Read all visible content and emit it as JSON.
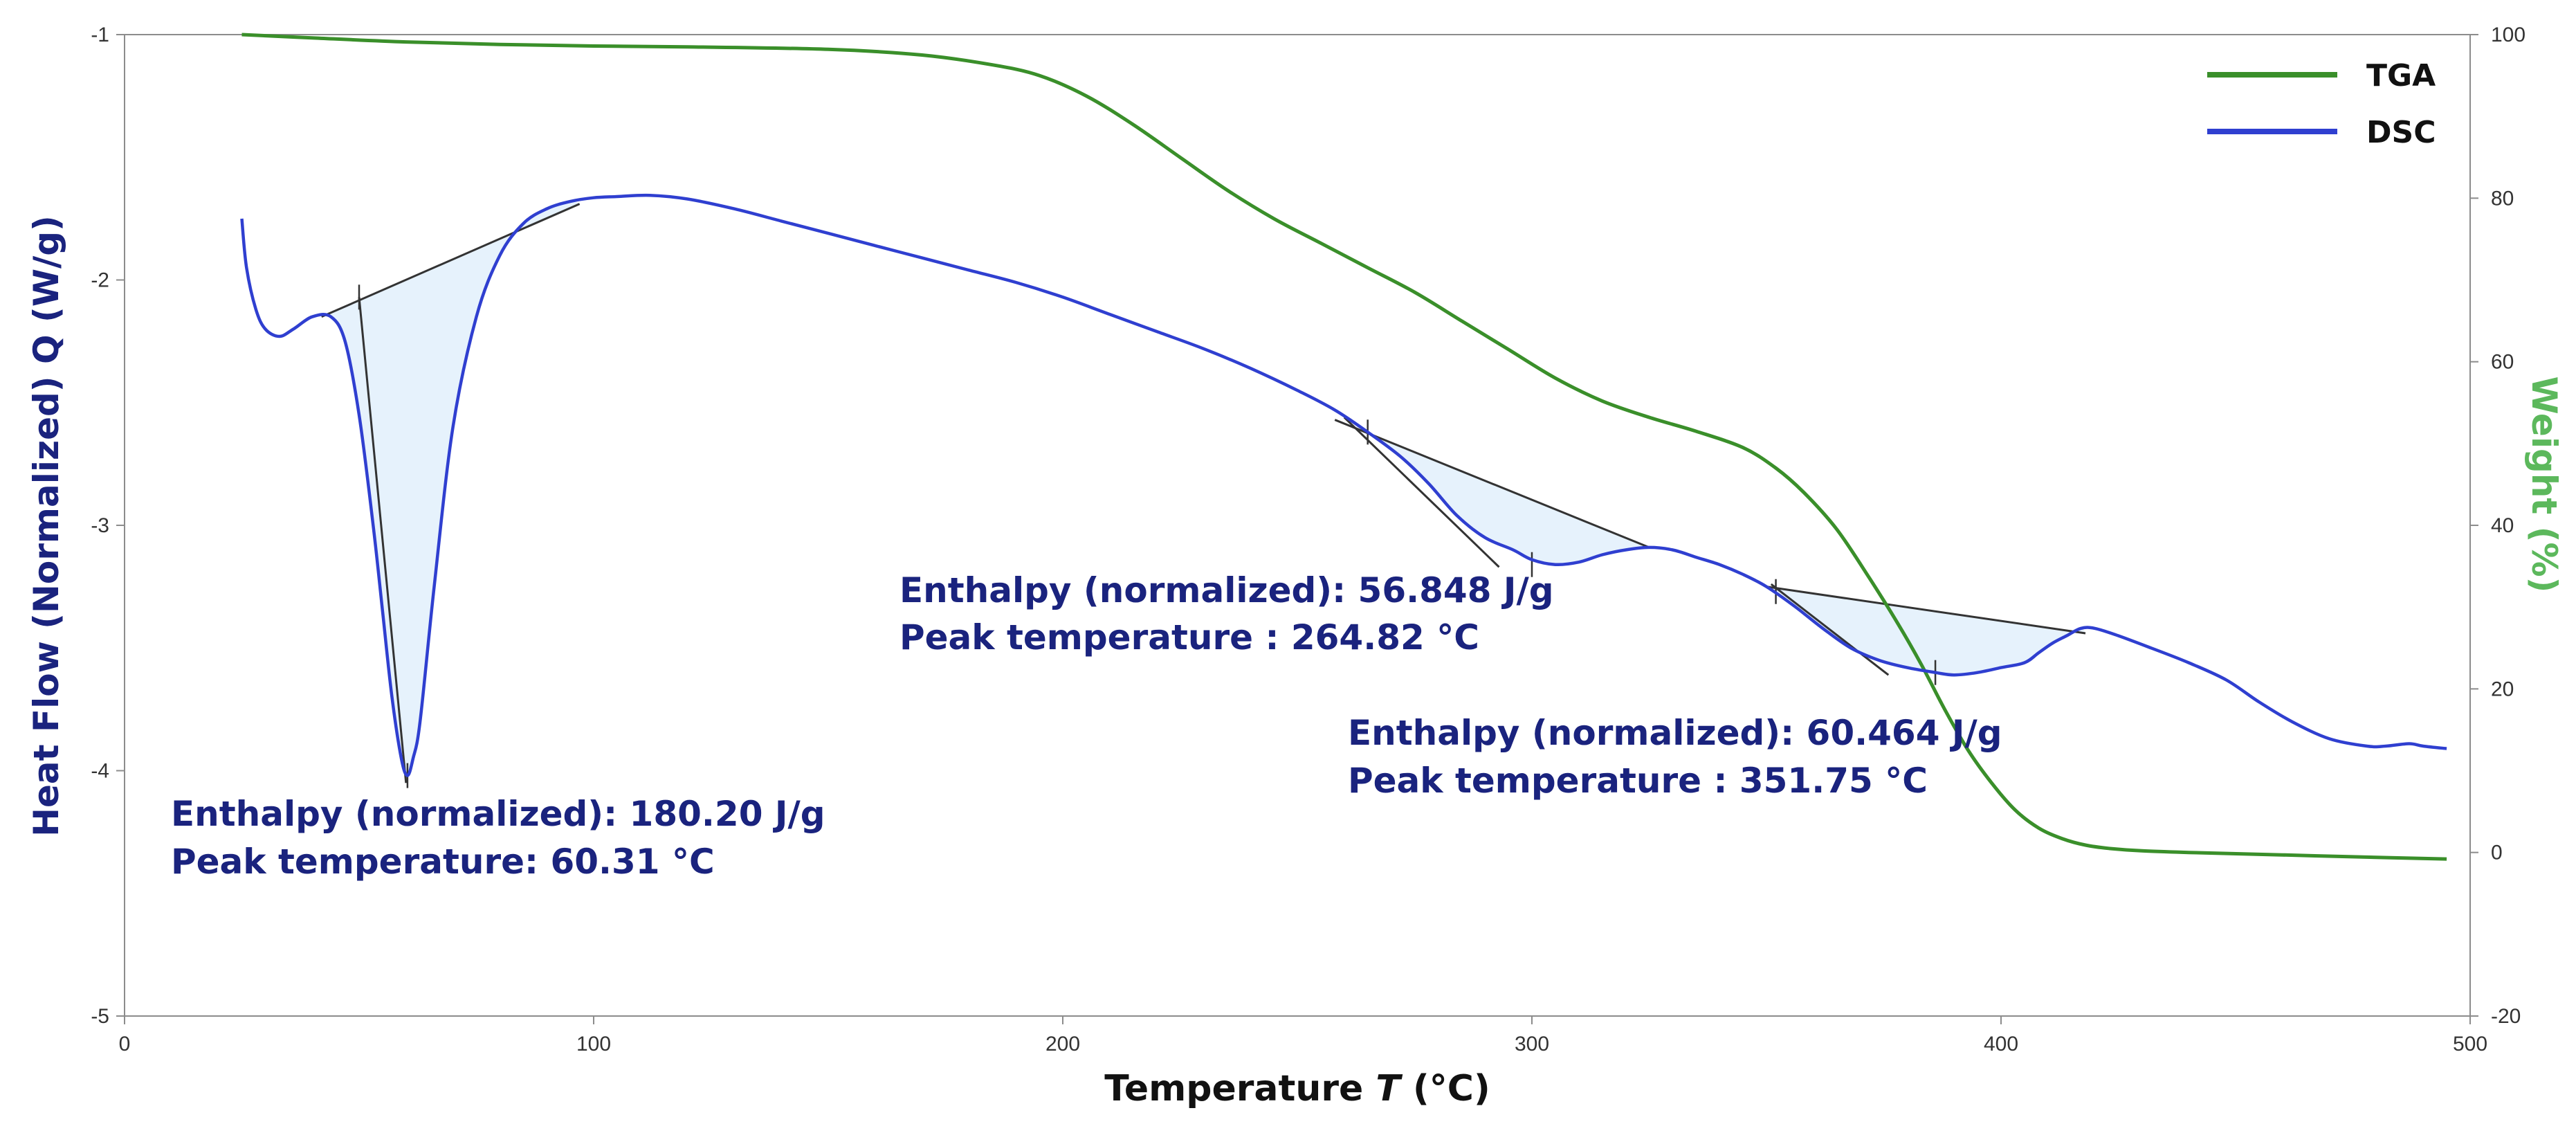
{
  "chart_data": {
    "type": "line",
    "xlabel": "Temperature T (°C)",
    "ylabel": "Heat Flow (Normalized) Q (W/g)",
    "y2label": "Weight (%)",
    "xlim": [
      0,
      500
    ],
    "ylim": [
      -5,
      -1
    ],
    "y2lim": [
      -20,
      100
    ],
    "x_ticks": [
      "0",
      "100",
      "200",
      "300",
      "400",
      "500"
    ],
    "y_ticks": [
      "-1",
      "-2",
      "-3",
      "-4",
      "-5"
    ],
    "y2_ticks": [
      "100",
      "80",
      "60",
      "40",
      "20",
      "0",
      "-20"
    ],
    "legend_position": "top-right",
    "colors": {
      "tga": "#3a8f2a",
      "dsc": "#2f3fd0",
      "annotation": "#1a237e",
      "fill": "#e6f2fc",
      "baseline": "#333333",
      "y2label": "#5cb85c"
    },
    "series": [
      {
        "name": "TGA",
        "axis": "right",
        "x": [
          25,
          40,
          60,
          80,
          100,
          120,
          150,
          170,
          185,
          195,
          205,
          215,
          225,
          235,
          245,
          255,
          265,
          275,
          285,
          295,
          305,
          315,
          325,
          335,
          345,
          352,
          358,
          365,
          372,
          378,
          383,
          388,
          393,
          398,
          403,
          408,
          413,
          418,
          423,
          430,
          440,
          460,
          480,
          495
        ],
        "values": [
          100,
          99.6,
          99.1,
          98.8,
          98.6,
          98.5,
          98.2,
          97.5,
          96.3,
          95,
          92.5,
          89,
          85,
          81,
          77.5,
          74.5,
          71.5,
          68.5,
          65,
          61.5,
          58,
          55.2,
          53.2,
          51.5,
          49.5,
          47,
          44,
          39.5,
          33.5,
          28,
          23,
          17.5,
          12.5,
          8.5,
          5.2,
          3,
          1.7,
          0.9,
          0.5,
          0.2,
          0,
          -0.3,
          -0.6,
          -0.8
        ]
      },
      {
        "name": "DSC",
        "axis": "left",
        "x": [
          25,
          26,
          28,
          30,
          33,
          36,
          40,
          44,
          47,
          50,
          53,
          55,
          57,
          59,
          60.31,
          61.5,
          63,
          66,
          70,
          75,
          80,
          85,
          90,
          95,
          100,
          105,
          112,
          120,
          130,
          140,
          150,
          160,
          170,
          180,
          190,
          200,
          210,
          220,
          230,
          240,
          250,
          258,
          265,
          272,
          278,
          284,
          290,
          296,
          300,
          305,
          310,
          315,
          320,
          325,
          330,
          335,
          340,
          345,
          350,
          356,
          362,
          368,
          374,
          380,
          386,
          390,
          395,
          400,
          405,
          408,
          411,
          414,
          417,
          420,
          425,
          432,
          440,
          448,
          455,
          462,
          470,
          478,
          482,
          487,
          490,
          495
        ],
        "values": [
          -1.75,
          -1.95,
          -2.12,
          -2.2,
          -2.23,
          -2.2,
          -2.15,
          -2.15,
          -2.25,
          -2.55,
          -3.0,
          -3.35,
          -3.7,
          -3.95,
          -4.02,
          -3.95,
          -3.8,
          -3.25,
          -2.6,
          -2.15,
          -1.9,
          -1.77,
          -1.71,
          -1.68,
          -1.665,
          -1.66,
          -1.655,
          -1.67,
          -1.71,
          -1.76,
          -1.81,
          -1.86,
          -1.91,
          -1.96,
          -2.01,
          -2.07,
          -2.14,
          -2.21,
          -2.28,
          -2.36,
          -2.45,
          -2.53,
          -2.62,
          -2.72,
          -2.83,
          -2.96,
          -3.05,
          -3.1,
          -3.14,
          -3.16,
          -3.15,
          -3.12,
          -3.1,
          -3.09,
          -3.1,
          -3.13,
          -3.16,
          -3.2,
          -3.25,
          -3.33,
          -3.42,
          -3.5,
          -3.55,
          -3.58,
          -3.6,
          -3.61,
          -3.6,
          -3.58,
          -3.56,
          -3.52,
          -3.48,
          -3.45,
          -3.42,
          -3.42,
          -3.45,
          -3.5,
          -3.56,
          -3.63,
          -3.72,
          -3.8,
          -3.87,
          -3.9,
          -3.9,
          -3.89,
          -3.9,
          -3.91
        ]
      }
    ],
    "peaks": [
      {
        "baseline_start": {
          "x": 42,
          "y": -2.15
        },
        "baseline_end": {
          "x": 97,
          "y": -1.69
        },
        "onset_marker": {
          "x": 50,
          "y": -2.07
        },
        "peak_marker": {
          "x": 60.31,
          "y": -4.02
        },
        "tangent_line": [
          {
            "x": 50,
            "y": -2.07
          },
          {
            "x": 60,
            "y": -4.05
          }
        ],
        "fill_x": [
          42,
          44,
          47,
          50,
          53,
          55,
          57,
          59,
          60.31,
          61.5,
          63,
          66,
          70,
          75,
          80,
          85,
          90,
          95,
          97
        ],
        "fill_y": [
          -2.15,
          -2.15,
          -2.25,
          -2.55,
          -3.0,
          -3.35,
          -3.7,
          -3.95,
          -4.02,
          -3.95,
          -3.8,
          -3.25,
          -2.6,
          -2.15,
          -1.9,
          -1.77,
          -1.71,
          -1.68,
          -1.69
        ],
        "label_enthalpy": "Enthalpy (normalized): 180.20 J/g",
        "label_peak": "Peak temperature: 60.31 °C"
      },
      {
        "baseline_start": {
          "x": 258,
          "y": -2.57
        },
        "baseline_end": {
          "x": 325,
          "y": -3.09
        },
        "onset_marker": {
          "x": 265,
          "y": -2.62
        },
        "peak_marker": {
          "x": 300,
          "y": -3.16
        },
        "tangent_line": [
          {
            "x": 260,
            "y": -2.56
          },
          {
            "x": 293,
            "y": -3.17
          }
        ],
        "fill_x": [
          258,
          265,
          272,
          278,
          284,
          290,
          296,
          300,
          305,
          310,
          315,
          320,
          325
        ],
        "fill_y": [
          -2.57,
          -2.62,
          -2.72,
          -2.83,
          -2.96,
          -3.05,
          -3.1,
          -3.14,
          -3.16,
          -3.15,
          -3.12,
          -3.1,
          -3.09
        ],
        "label_enthalpy": "Enthalpy (normalized): 56.848 J/g",
        "label_peak": "Peak temperature : 264.82 °C"
      },
      {
        "baseline_start": {
          "x": 350,
          "y": -3.25
        },
        "baseline_end": {
          "x": 418,
          "y": -3.44
        },
        "onset_marker": {
          "x": 352,
          "y": -3.27
        },
        "peak_marker": {
          "x": 386,
          "y": -3.6
        },
        "tangent_line": [
          {
            "x": 351,
            "y": -3.24
          },
          {
            "x": 376,
            "y": -3.61
          }
        ],
        "fill_x": [
          350,
          356,
          362,
          368,
          374,
          380,
          386,
          390,
          395,
          400,
          405,
          408,
          411,
          414,
          417,
          418
        ],
        "fill_y": [
          -3.25,
          -3.33,
          -3.42,
          -3.5,
          -3.55,
          -3.58,
          -3.6,
          -3.61,
          -3.6,
          -3.58,
          -3.56,
          -3.52,
          -3.48,
          -3.45,
          -3.42,
          -3.44
        ],
        "label_enthalpy": "Enthalpy (normalized): 60.464 J/g",
        "label_peak": "Peak temperature : 351.75 °C"
      }
    ],
    "labels": {
      "x_prefix": "Temperature ",
      "x_var": "T",
      "x_unit": " (°C)",
      "y": "Heat Flow (Normalized) Q (W/g)",
      "y2": "Weight (%)"
    },
    "legend": [
      "TGA",
      "DSC"
    ]
  }
}
